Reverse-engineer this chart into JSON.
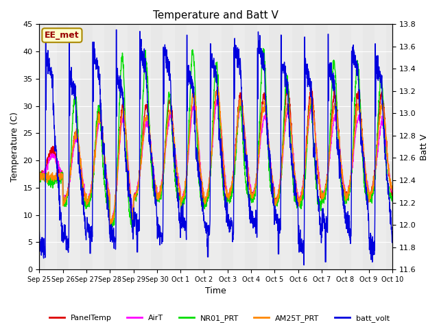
{
  "title": "Temperature and Batt V",
  "xlabel": "Time",
  "ylabel_left": "Temperature (C)",
  "ylabel_right": "Batt V",
  "ylim_left": [
    0,
    45
  ],
  "ylim_right": [
    11.6,
    13.8
  ],
  "annotation": "EE_met",
  "background_color": "#e8e8e8",
  "series": {
    "PanelTemp": {
      "color": "#dd0000",
      "lw": 1.0
    },
    "AirT": {
      "color": "#ff00ff",
      "lw": 1.0
    },
    "NR01_PRT": {
      "color": "#00dd00",
      "lw": 1.0
    },
    "AM25T_PRT": {
      "color": "#ff8800",
      "lw": 1.0
    },
    "batt_volt": {
      "color": "#0000dd",
      "lw": 1.0
    }
  },
  "legend_order": [
    "PanelTemp",
    "AirT",
    "NR01_PRT",
    "AM25T_PRT",
    "batt_volt"
  ],
  "xtick_labels": [
    "Sep 25",
    "Sep 26",
    "Sep 27",
    "Sep 28",
    "Sep 29",
    "Sep 30",
    "Oct 1",
    "Oct 2",
    "Oct 3",
    "Oct 4",
    "Oct 5",
    "Oct 6",
    "Oct 7",
    "Oct 8",
    "Oct 9",
    "Oct 10"
  ],
  "left_yticks": [
    0,
    5,
    10,
    15,
    20,
    25,
    30,
    35,
    40,
    45
  ],
  "right_yticks": [
    11.6,
    11.8,
    12.0,
    12.2,
    12.4,
    12.6,
    12.8,
    13.0,
    13.2,
    13.4,
    13.6,
    13.8
  ]
}
